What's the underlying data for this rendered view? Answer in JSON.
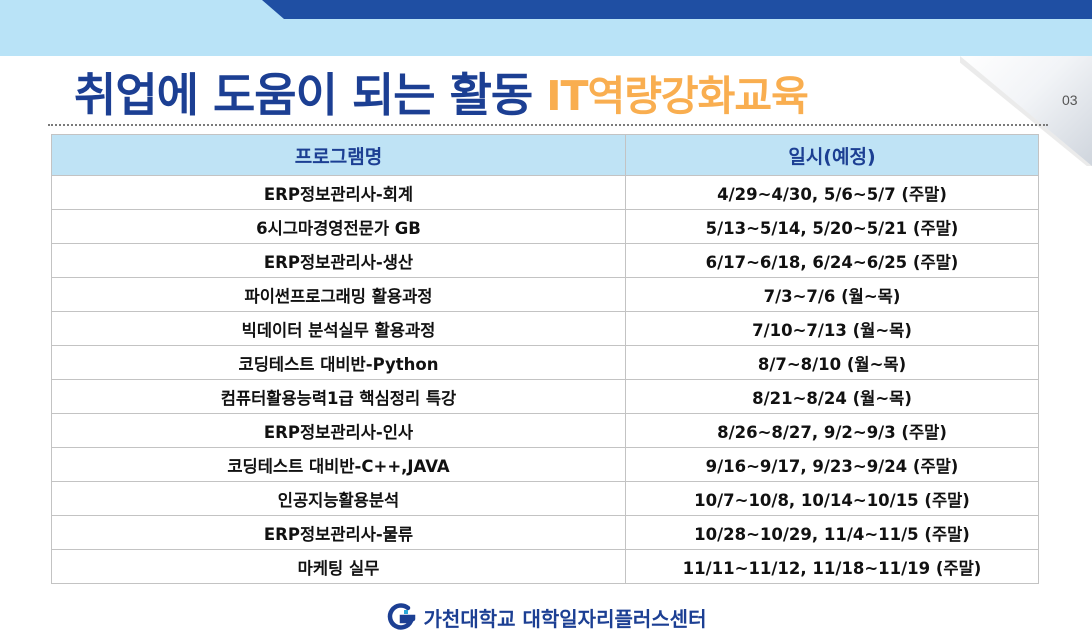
{
  "header": {
    "title_main": "취업에 도움이 되는 활동",
    "title_accent": "IT역량강화교육",
    "page_number": "03"
  },
  "table": {
    "headers": [
      "프로그램명",
      "일시(예정)"
    ],
    "rows": [
      [
        "ERP정보관리사-회계",
        "4/29~4/30, 5/6~5/7 (주말)"
      ],
      [
        "6시그마경영전문가 GB",
        "5/13~5/14, 5/20~5/21 (주말)"
      ],
      [
        "ERP정보관리사-생산",
        "6/17~6/18, 6/24~6/25 (주말)"
      ],
      [
        "파이썬프로그래밍 활용과정",
        "7/3~7/6 (월~목)"
      ],
      [
        "빅데이터 분석실무 활용과정",
        "7/10~7/13 (월~목)"
      ],
      [
        "코딩테스트 대비반-Python",
        "8/7~8/10 (월~목)"
      ],
      [
        "컴퓨터활용능력1급 핵심정리 특강",
        "8/21~8/24 (월~목)"
      ],
      [
        "ERP정보관리사-인사",
        "8/26~8/27, 9/2~9/3 (주말)"
      ],
      [
        "코딩테스트 대비반-C++,JAVA",
        "9/16~9/17, 9/23~9/24 (주말)"
      ],
      [
        "인공지능활용분석",
        "10/7~10/8, 10/14~10/15 (주말)"
      ],
      [
        "ERP정보관리사-물류",
        "10/28~10/29, 11/4~11/5 (주말)"
      ],
      [
        "마케팅 실무",
        "11/11~11/12, 11/18~11/19 (주말)"
      ]
    ]
  },
  "footer": {
    "logo_icon": "gachon-g-logo",
    "text": "가천대학교 대학일자리플러스센터"
  },
  "colors": {
    "navy": "#1c3f93",
    "accent": "#f9ae50",
    "band": "#b9e3f7",
    "header_bg": "#bfe3f5"
  }
}
